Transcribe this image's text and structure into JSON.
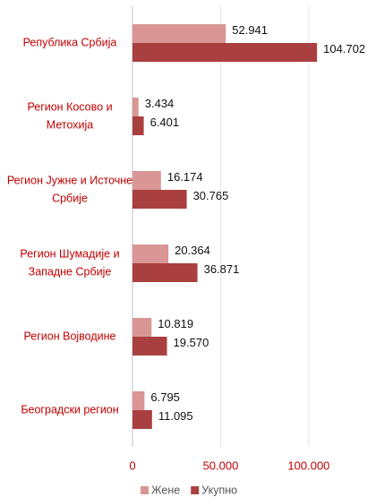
{
  "chart_data": {
    "type": "hbar",
    "categories": [
      [
        "Република Србија"
      ],
      [
        "Регион Косово и",
        "Метохија"
      ],
      [
        "Регион Јужне и Источне",
        "Србије"
      ],
      [
        "Регион Шумадије и",
        "Западне Србије"
      ],
      [
        "Регион Војводине"
      ],
      [
        "Београдски регион"
      ]
    ],
    "series": [
      {
        "name": "Жене",
        "color": "#d99694",
        "values": [
          52941,
          3434,
          16174,
          20364,
          10819,
          6795
        ],
        "value_labels": [
          "52.941",
          "3.434",
          "16.174",
          "20.364",
          "10.819",
          "6.795"
        ]
      },
      {
        "name": "Укупно",
        "color": "#a9403f",
        "values": [
          104702,
          6401,
          30765,
          36871,
          19570,
          11095
        ],
        "value_labels": [
          "104.702",
          "6.401",
          "30.765",
          "36.871",
          "19.570",
          "11.095"
        ]
      }
    ],
    "xlim": [
      0,
      130000
    ],
    "xticks": [
      0,
      {
        "value": 50000,
        "label": "50.000"
      },
      {
        "value": 100000,
        "label": "100.000"
      }
    ],
    "grid": true,
    "legend": "bottom"
  }
}
